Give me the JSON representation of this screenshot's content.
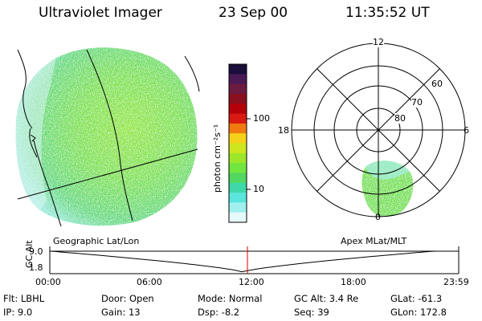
{
  "header": {
    "instrument": "Ultraviolet Imager",
    "date": "23 Sep 00",
    "time": "11:35:52 UT"
  },
  "colorbar": {
    "unit_label": "photon cm⁻²s⁻¹",
    "ticks": [
      "100",
      "10"
    ],
    "colors": [
      "#1a0f3a",
      "#4a1a55",
      "#6b1a40",
      "#8a0f1e",
      "#b3000a",
      "#d81a12",
      "#f07a10",
      "#f5d21a",
      "#cde61e",
      "#9ee62a",
      "#72e640",
      "#52d860",
      "#3fd8a8",
      "#5ae6dc",
      "#a0f0f0",
      "#e6fafa"
    ]
  },
  "polar": {
    "mlt_labels": [
      "12",
      "18",
      "6",
      "0"
    ],
    "lat_labels": [
      "60",
      "70",
      "80"
    ]
  },
  "timeline": {
    "ylabel": "GC Alt",
    "yticks": [
      "9.0",
      "1.8"
    ],
    "left_label": "Geographic Lat/Lon",
    "right_label": "Apex MLat/MLT",
    "xticks": [
      "00:00",
      "06:00",
      "12:00",
      "18:00",
      "23:59"
    ],
    "current_time_hours": 11.6,
    "marker_color": "#dd0000"
  },
  "info": {
    "flt": "Flt:  LBHL",
    "ip": "IP:  9.0",
    "door": "Door:  Open",
    "gain": "Gain:  13",
    "mode": "Mode:  Normal",
    "dsp": "Dsp:     -8.2",
    "gcalt": "GC Alt:  3.4 Re",
    "seq": "Seq:  39",
    "glat": "GLat:  -61.3",
    "glon": "GLon:  172.8"
  }
}
